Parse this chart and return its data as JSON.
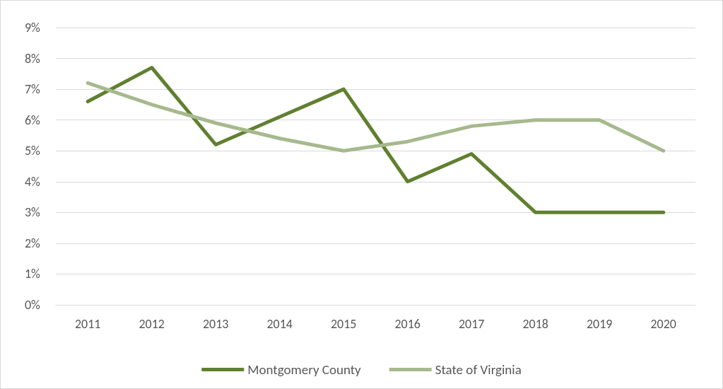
{
  "chart_data": {
    "type": "line",
    "categories": [
      "2011",
      "2012",
      "2013",
      "2014",
      "2015",
      "2016",
      "2017",
      "2018",
      "2019",
      "2020"
    ],
    "series": [
      {
        "name": "Montgomery County",
        "color": "#608030",
        "values": [
          6.6,
          7.7,
          5.2,
          6.1,
          7.0,
          4.0,
          4.9,
          3.0,
          3.0,
          3.0
        ]
      },
      {
        "name": "State of Virginia",
        "color": "#a6b98d",
        "values": [
          7.2,
          6.5,
          5.9,
          5.4,
          5.0,
          5.3,
          5.8,
          6.0,
          6.0,
          5.0
        ]
      }
    ],
    "ylim": [
      0,
      9
    ],
    "yticks": [
      {
        "value": 0,
        "label": "0%"
      },
      {
        "value": 1,
        "label": "1%"
      },
      {
        "value": 2,
        "label": "2%"
      },
      {
        "value": 3,
        "label": "3%"
      },
      {
        "value": 4,
        "label": "4%"
      },
      {
        "value": 5,
        "label": "5%"
      },
      {
        "value": 6,
        "label": "6%"
      },
      {
        "value": 7,
        "label": "7%"
      },
      {
        "value": 8,
        "label": "8%"
      },
      {
        "value": 9,
        "label": "9%"
      }
    ],
    "grid": "y",
    "legend": "bottom",
    "marker": "none",
    "line_style": "solid"
  }
}
